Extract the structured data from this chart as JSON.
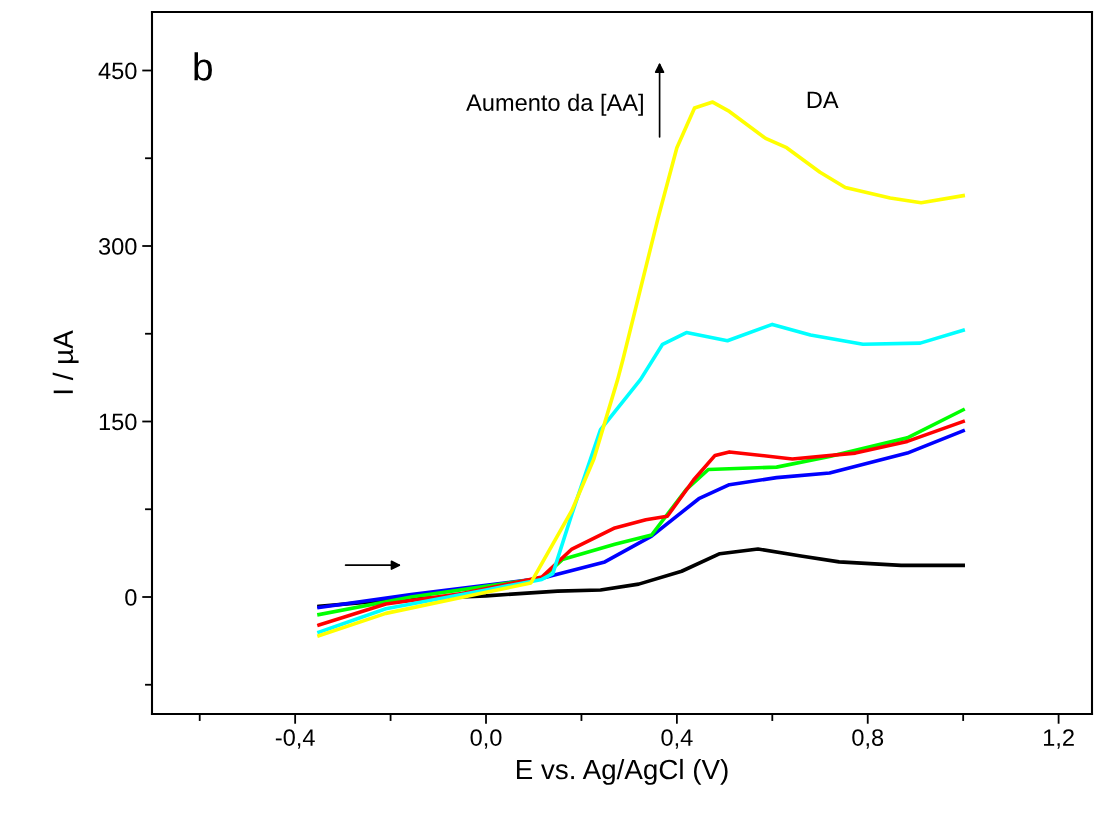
{
  "chart_data": {
    "type": "line",
    "xlabel": "E vs. Ag/AgCl (V)",
    "ylabel": "I / µA",
    "xlim": [
      -0.7,
      1.27
    ],
    "ylim": [
      -100,
      500
    ],
    "xticks": [
      {
        "value": -0.6,
        "label": null
      },
      {
        "value": -0.4,
        "label": "-0,4"
      },
      {
        "value": -0.2,
        "label": null
      },
      {
        "value": 0.0,
        "label": "0,0"
      },
      {
        "value": 0.2,
        "label": null
      },
      {
        "value": 0.4,
        "label": "0,4"
      },
      {
        "value": 0.6,
        "label": null
      },
      {
        "value": 0.8,
        "label": "0,8"
      },
      {
        "value": 1.0,
        "label": null
      },
      {
        "value": 1.2,
        "label": "1,2"
      }
    ],
    "yticks": [
      {
        "value": -75,
        "label": null
      },
      0,
      {
        "value": 75,
        "label": null
      },
      150,
      {
        "value": 225,
        "label": null
      },
      300,
      {
        "value": 375,
        "label": null
      },
      450
    ],
    "grid": false,
    "legend": false,
    "marker": "none",
    "line_style": "solid",
    "annotations": [
      "b",
      "Aumento da [AA]",
      "DA"
    ],
    "series": [
      {
        "color": "#000000",
        "x": [
          -0.35,
          -0.18,
          0.0,
          0.15,
          0.24,
          0.32,
          0.41,
          0.49,
          0.57,
          0.66,
          0.74,
          0.87,
          1.0
        ],
        "values": [
          -8,
          -2,
          1,
          5,
          6,
          11,
          22,
          37,
          41,
          35,
          30,
          27,
          27
        ]
      },
      {
        "color": "#0000ff",
        "x": [
          -0.35,
          -0.157,
          0.117,
          0.249,
          0.347,
          0.446,
          0.51,
          0.609,
          0.72,
          0.883,
          1.0
        ],
        "values": [
          -9,
          2,
          16,
          30,
          52,
          84,
          96,
          102,
          106,
          123,
          142
        ]
      },
      {
        "color": "#00ff00",
        "x": [
          -0.35,
          -0.157,
          0.117,
          0.16,
          0.27,
          0.347,
          0.42,
          0.466,
          0.609,
          0.72,
          0.883,
          1.0
        ],
        "values": [
          -15,
          0,
          16,
          32,
          45,
          53,
          92,
          109,
          111,
          120,
          136,
          160
        ]
      },
      {
        "color": "#ff0000",
        "x": [
          -0.35,
          -0.21,
          -0.05,
          0.117,
          0.18,
          0.27,
          0.335,
          0.38,
          0.435,
          0.48,
          0.51,
          0.642,
          0.774,
          0.883,
          1.0
        ],
        "values": [
          -24,
          -6,
          3,
          17,
          41,
          59,
          66,
          69,
          100,
          121,
          124,
          118,
          123,
          133,
          150
        ]
      },
      {
        "color": "#00ffff",
        "x": [
          -0.35,
          -0.21,
          0.0,
          0.117,
          0.14,
          0.18,
          0.24,
          0.324,
          0.37,
          0.42,
          0.506,
          0.6,
          0.68,
          0.79,
          0.91,
          1.0
        ],
        "values": [
          -30,
          -10,
          6,
          15,
          20,
          71,
          143,
          186,
          216,
          226,
          219,
          233,
          224,
          216,
          217,
          228
        ]
      },
      {
        "color": "#ffff00",
        "x": [
          -0.35,
          -0.21,
          0.0,
          0.094,
          0.18,
          0.226,
          0.276,
          0.287,
          0.36,
          0.4,
          0.437,
          0.475,
          0.51,
          0.586,
          0.63,
          0.7,
          0.753,
          0.847,
          0.912,
          1.0
        ],
        "values": [
          -33,
          -14,
          4,
          12,
          74,
          118,
          186,
          203,
          323,
          384,
          418,
          423,
          415,
          392,
          384,
          363,
          350,
          341,
          337,
          343
        ]
      }
    ]
  }
}
